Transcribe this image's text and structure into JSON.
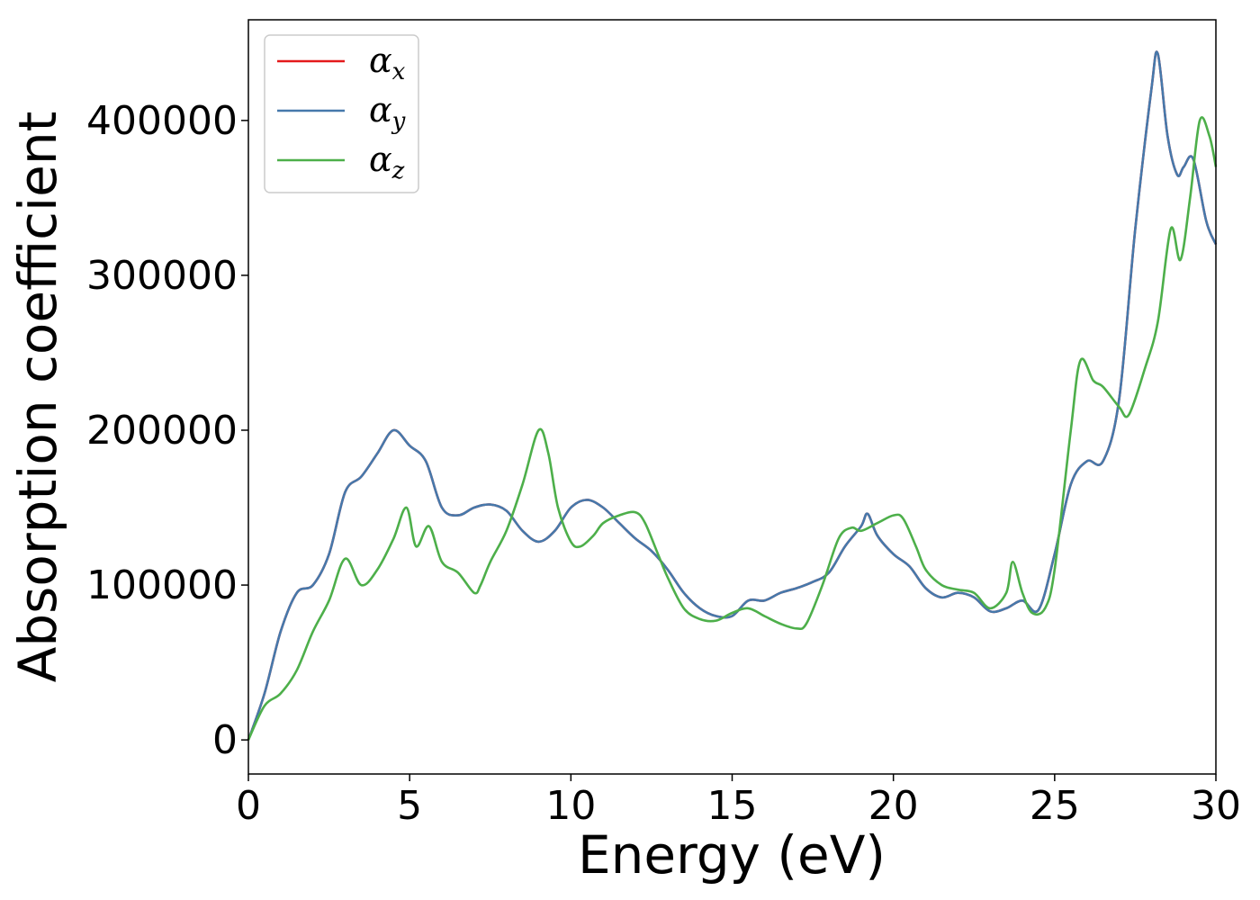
{
  "chart_data": {
    "type": "line",
    "xlabel": "Energy (eV)",
    "ylabel": "Absorption coefficient",
    "xlim": [
      0,
      30
    ],
    "ylim": [
      -22000,
      465000
    ],
    "xticks": [
      0,
      5,
      10,
      15,
      20,
      25,
      30
    ],
    "yticks": [
      0,
      100000,
      200000,
      300000,
      400000
    ],
    "grid": false,
    "legend_position": "top-left",
    "series": [
      {
        "name": "α_x",
        "symbol": "α",
        "subscript": "x",
        "color": "#e41a1c",
        "x": [
          0,
          0.5,
          1,
          1.5,
          2,
          2.5,
          3,
          3.5,
          4,
          4.5,
          5,
          5.5,
          6,
          6.5,
          7,
          7.5,
          8,
          8.5,
          9,
          9.5,
          10,
          10.5,
          11,
          11.5,
          12,
          12.5,
          13,
          13.5,
          14,
          14.5,
          15,
          15.5,
          16,
          16.5,
          17,
          17.5,
          18,
          18.5,
          19,
          19.2,
          19.5,
          20,
          20.5,
          21,
          21.5,
          22,
          22.5,
          23,
          23.5,
          24,
          24.5,
          25,
          25.5,
          26,
          26.5,
          27,
          27.5,
          28,
          28.2,
          28.5,
          28.8,
          29,
          29.3,
          29.7,
          30
        ],
        "y": [
          0,
          30000,
          70000,
          95000,
          100000,
          120000,
          160000,
          170000,
          185000,
          200000,
          190000,
          180000,
          150000,
          145000,
          150000,
          152000,
          148000,
          135000,
          128000,
          135000,
          150000,
          155000,
          150000,
          140000,
          130000,
          122000,
          110000,
          95000,
          85000,
          80000,
          80000,
          90000,
          90000,
          95000,
          98000,
          102000,
          108000,
          125000,
          138000,
          146000,
          132000,
          120000,
          112000,
          98000,
          92000,
          95000,
          92000,
          83000,
          85000,
          90000,
          84000,
          120000,
          165000,
          180000,
          180000,
          220000,
          330000,
          420000,
          443000,
          390000,
          365000,
          370000,
          375000,
          335000,
          320000
        ]
      },
      {
        "name": "α_y",
        "symbol": "α",
        "subscript": "y",
        "color": "#4679ab",
        "x": [
          0,
          0.5,
          1,
          1.5,
          2,
          2.5,
          3,
          3.5,
          4,
          4.5,
          5,
          5.5,
          6,
          6.5,
          7,
          7.5,
          8,
          8.5,
          9,
          9.5,
          10,
          10.5,
          11,
          11.5,
          12,
          12.5,
          13,
          13.5,
          14,
          14.5,
          15,
          15.5,
          16,
          16.5,
          17,
          17.5,
          18,
          18.5,
          19,
          19.2,
          19.5,
          20,
          20.5,
          21,
          21.5,
          22,
          22.5,
          23,
          23.5,
          24,
          24.5,
          25,
          25.5,
          26,
          26.5,
          27,
          27.5,
          28,
          28.2,
          28.5,
          28.8,
          29,
          29.3,
          29.7,
          30
        ],
        "y": [
          0,
          30000,
          70000,
          95000,
          100000,
          120000,
          160000,
          170000,
          185000,
          200000,
          190000,
          180000,
          150000,
          145000,
          150000,
          152000,
          148000,
          135000,
          128000,
          135000,
          150000,
          155000,
          150000,
          140000,
          130000,
          122000,
          110000,
          95000,
          85000,
          80000,
          80000,
          90000,
          90000,
          95000,
          98000,
          102000,
          108000,
          125000,
          138000,
          146000,
          132000,
          120000,
          112000,
          98000,
          92000,
          95000,
          92000,
          83000,
          85000,
          90000,
          84000,
          120000,
          165000,
          180000,
          180000,
          220000,
          330000,
          420000,
          443000,
          390000,
          365000,
          370000,
          375000,
          335000,
          320000
        ]
      },
      {
        "name": "α_z",
        "symbol": "α",
        "subscript": "z",
        "color": "#4daf4a",
        "x": [
          0,
          0.5,
          1,
          1.5,
          2,
          2.5,
          3,
          3.5,
          4,
          4.5,
          4.9,
          5.2,
          5.6,
          6,
          6.5,
          7,
          7.2,
          7.5,
          8,
          8.5,
          9,
          9.3,
          9.6,
          10,
          10.3,
          10.7,
          11,
          11.5,
          12,
          12.3,
          12.7,
          13,
          13.5,
          14,
          14.5,
          15,
          15.5,
          16,
          16.5,
          17,
          17.3,
          17.8,
          18.3,
          18.7,
          19,
          19.5,
          20,
          20.3,
          20.7,
          21,
          21.5,
          22,
          22.5,
          23,
          23.5,
          23.7,
          24,
          24.3,
          24.7,
          25,
          25.5,
          25.8,
          26.2,
          26.5,
          27,
          27.3,
          27.8,
          28.2,
          28.6,
          28.9,
          29.2,
          29.5,
          29.8,
          30
        ],
        "y": [
          0,
          22000,
          30000,
          45000,
          70000,
          90000,
          117000,
          100000,
          110000,
          130000,
          150000,
          125000,
          138000,
          115000,
          108000,
          95000,
          100000,
          115000,
          135000,
          165000,
          200000,
          185000,
          150000,
          128000,
          125000,
          132000,
          140000,
          145000,
          147000,
          140000,
          120000,
          105000,
          85000,
          78000,
          77000,
          82000,
          85000,
          80000,
          75000,
          72000,
          75000,
          100000,
          130000,
          137000,
          135000,
          140000,
          145000,
          143000,
          125000,
          110000,
          100000,
          97000,
          95000,
          85000,
          95000,
          115000,
          95000,
          82000,
          85000,
          110000,
          200000,
          245000,
          232000,
          228000,
          215000,
          210000,
          240000,
          270000,
          330000,
          310000,
          350000,
          400000,
          390000,
          370000
        ]
      }
    ]
  }
}
